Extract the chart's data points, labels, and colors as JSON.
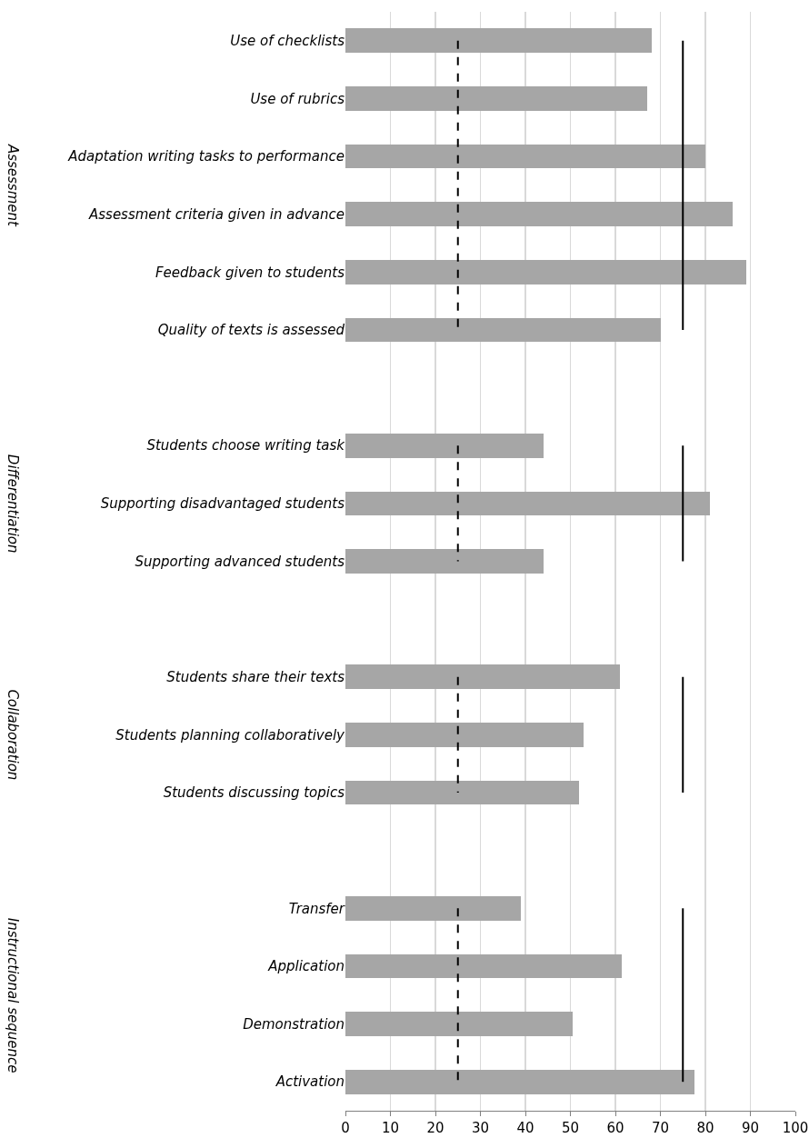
{
  "chart_data": {
    "type": "bar",
    "orientation": "horizontal",
    "categories": [
      "Use of checklists",
      "Use of rubrics",
      "Adaptation writing tasks to performance",
      "Assessment criteria given in advance",
      "Feedback given to students",
      "Quality of texts is assessed",
      null,
      "Students choose writing task",
      "Supporting disadvantaged students",
      "Supporting advanced students",
      null,
      "Students share their texts",
      "Students planning collaboratively",
      "Students discussing topics",
      null,
      "Transfer",
      "Application",
      "Demonstration",
      "Activation"
    ],
    "values": [
      68,
      67,
      80,
      86,
      89,
      70,
      null,
      44,
      81,
      44,
      null,
      61,
      53,
      52,
      null,
      39,
      61.5,
      50.5,
      77.5
    ],
    "color": "#a6a6a6",
    "annotations": [
      "Assessment",
      "Differentiation",
      "Collaboration",
      "Instructional sequence"
    ],
    "xlim": [
      0,
      100
    ],
    "xticks": [
      0,
      10,
      20,
      30,
      40,
      50,
      60,
      70,
      80,
      90,
      100
    ],
    "grid": "x",
    "ref_lines": [
      {
        "axis": "x",
        "value": 25,
        "line_style": "dashed",
        "color": "#000000"
      },
      {
        "axis": "x",
        "value": 75,
        "line_style": "solid",
        "color": "#000000"
      }
    ]
  }
}
